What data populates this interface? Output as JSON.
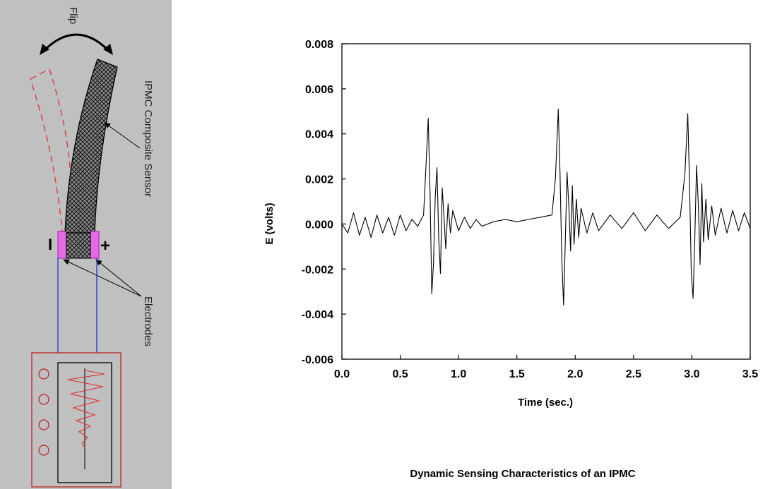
{
  "diagram": {
    "flip_label": "Flip",
    "sensor_label": "IPMC  Composite  Sensor",
    "electrodes_label": "Electrodes",
    "minus_sign": "I",
    "plus_sign": "+"
  },
  "caption": "Dynamic Sensing Characteristics of an IPMC",
  "chart_data": {
    "type": "line",
    "xlabel": "Time (sec.)",
    "ylabel": "E (volts)",
    "xlim": [
      0.0,
      3.5
    ],
    "ylim": [
      -0.006,
      0.008
    ],
    "x_ticks": [
      "0.0",
      "0.5",
      "1.0",
      "1.5",
      "2.0",
      "2.5",
      "3.0",
      "3.5"
    ],
    "y_ticks": [
      "0.008",
      "0.006",
      "0.004",
      "0.002",
      "0.000",
      "-0.002",
      "-0.004",
      "-0.006"
    ],
    "grid": false,
    "series": [
      {
        "x": [
          0.0,
          0.05,
          0.1,
          0.15,
          0.2,
          0.25,
          0.3,
          0.35,
          0.4,
          0.45,
          0.5,
          0.55,
          0.6,
          0.65,
          0.7,
          0.72,
          0.74,
          0.755,
          0.77,
          0.785,
          0.8,
          0.815,
          0.83,
          0.845,
          0.86,
          0.875,
          0.89,
          0.91,
          0.93,
          0.95,
          1.0,
          1.05,
          1.1,
          1.15,
          1.2,
          1.3,
          1.4,
          1.5,
          1.6,
          1.7,
          1.8,
          1.83,
          1.855,
          1.87,
          1.885,
          1.9,
          1.915,
          1.93,
          1.945,
          1.96,
          1.975,
          1.99,
          2.01,
          2.03,
          2.05,
          2.1,
          2.15,
          2.2,
          2.3,
          2.4,
          2.5,
          2.6,
          2.7,
          2.8,
          2.9,
          2.94,
          2.965,
          2.98,
          2.995,
          3.01,
          3.025,
          3.04,
          3.055,
          3.07,
          3.085,
          3.1,
          3.12,
          3.14,
          3.17,
          3.2,
          3.25,
          3.3,
          3.35,
          3.4,
          3.45,
          3.5
        ],
        "y": [
          0.0,
          -0.0004,
          0.0005,
          -0.0005,
          0.0003,
          -0.0006,
          0.0004,
          -0.0004,
          0.0003,
          -0.0005,
          0.0004,
          -0.0003,
          0.0002,
          -0.0001,
          0.0004,
          0.0025,
          0.0047,
          0.0015,
          -0.0031,
          -0.0018,
          0.0012,
          0.0025,
          -0.0007,
          -0.0022,
          0.0016,
          0.0003,
          -0.0011,
          0.0009,
          -0.0004,
          0.0006,
          -0.0003,
          0.0003,
          -0.0002,
          0.0002,
          -0.0001,
          0.0001,
          0.0002,
          0.0001,
          0.0002,
          0.0003,
          0.0004,
          0.002,
          0.0051,
          0.0022,
          -0.0016,
          -0.0036,
          -0.0008,
          0.0023,
          0.0008,
          -0.0012,
          0.0017,
          -0.0009,
          0.0011,
          -0.0006,
          0.0007,
          -0.0004,
          0.0005,
          -0.0003,
          0.0004,
          -0.0002,
          0.0005,
          -0.0003,
          0.0004,
          -0.0002,
          0.0003,
          0.0022,
          0.0049,
          0.0018,
          -0.0022,
          -0.0033,
          -0.0006,
          0.0026,
          0.0009,
          -0.0018,
          0.0018,
          -0.0008,
          0.0011,
          -0.0007,
          0.0008,
          -0.0005,
          0.0007,
          -0.0004,
          0.0006,
          -0.0003,
          0.0005,
          -0.0002
        ]
      }
    ]
  }
}
